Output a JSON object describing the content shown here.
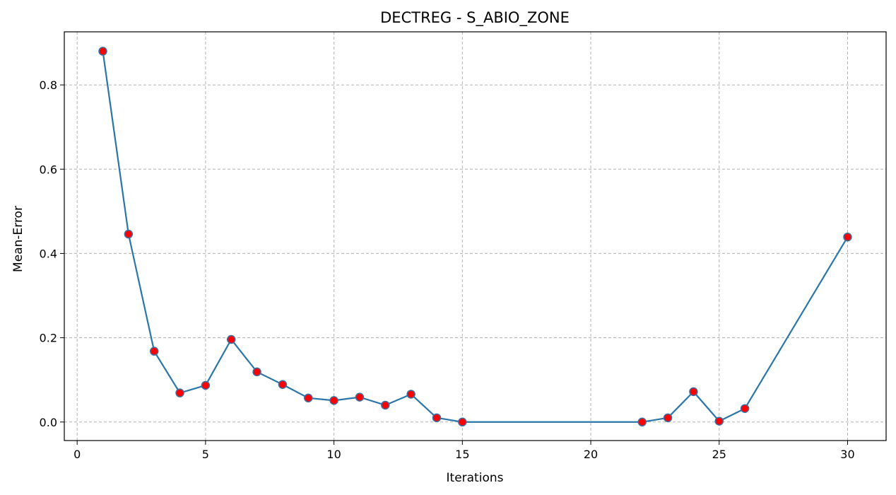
{
  "chart_data": {
    "type": "line",
    "title": "DECTREG - S_ABIO_ZONE",
    "xlabel": "Iterations",
    "ylabel": "Mean-Error",
    "xlim": [
      -0.5,
      31.5
    ],
    "ylim": [
      -0.044,
      0.926
    ],
    "xticks": [
      0,
      5,
      10,
      15,
      20,
      25,
      30
    ],
    "yticks": [
      0.0,
      0.2,
      0.4,
      0.6,
      0.8
    ],
    "xtick_labels": [
      "0",
      "5",
      "10",
      "15",
      "20",
      "25",
      "30"
    ],
    "ytick_labels": [
      "0.0",
      "0.2",
      "0.4",
      "0.6",
      "0.8"
    ],
    "grid": true,
    "grid_style": "dashed",
    "line_color": "#2a76a8",
    "marker_face_color": "#ff0000",
    "marker_edge_color": "#3d6fa0",
    "series": [
      {
        "x": [
          1,
          2,
          3,
          4,
          5,
          6,
          7,
          8,
          9,
          10,
          11,
          12,
          13,
          14,
          15,
          22,
          23,
          24,
          25,
          26,
          30
        ],
        "values": [
          0.88,
          0.446,
          0.168,
          0.069,
          0.087,
          0.196,
          0.119,
          0.089,
          0.057,
          0.051,
          0.059,
          0.04,
          0.066,
          0.01,
          0.0,
          0.0,
          0.01,
          0.072,
          0.002,
          0.032,
          0.439
        ]
      }
    ]
  }
}
